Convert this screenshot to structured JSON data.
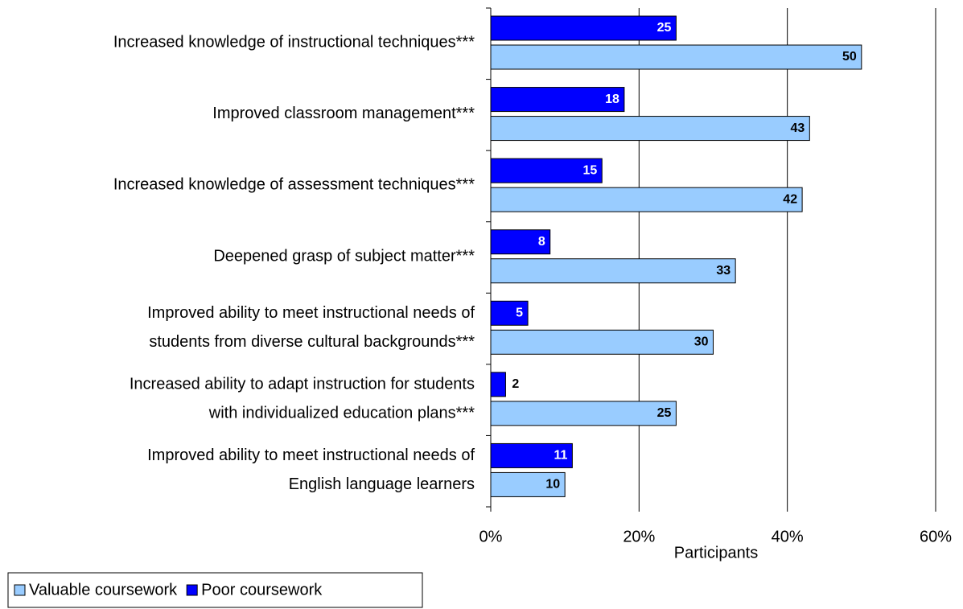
{
  "chart_data": {
    "type": "bar",
    "orientation": "horizontal",
    "categories": [
      [
        "Increased knowledge of instructional techniques***"
      ],
      [
        "Improved classroom management***"
      ],
      [
        "Increased knowledge of assessment techniques***"
      ],
      [
        "Deepened grasp of subject matter***"
      ],
      [
        "Improved ability to meet instructional needs of",
        "students from diverse cultural backgrounds***"
      ],
      [
        "Increased ability to adapt instruction for students",
        "with individualized education plans***"
      ],
      [
        "Improved ability to meet instructional needs of",
        "English language learners"
      ]
    ],
    "series": [
      {
        "name": "Valuable coursework",
        "color": "#99ccff",
        "values": [
          50,
          43,
          42,
          33,
          30,
          25,
          10
        ]
      },
      {
        "name": "Poor coursework",
        "color": "#0000ff",
        "values": [
          25,
          18,
          15,
          8,
          5,
          2,
          11
        ]
      }
    ],
    "xlabel": "Participants",
    "xlim": [
      0,
      60
    ],
    "xticks": [
      {
        "value": 0,
        "label": "0%"
      },
      {
        "value": 20,
        "label": "20%"
      },
      {
        "value": 40,
        "label": "40%"
      },
      {
        "value": 60,
        "label": "60%"
      }
    ],
    "grid": true,
    "legend": "bottom-left"
  }
}
